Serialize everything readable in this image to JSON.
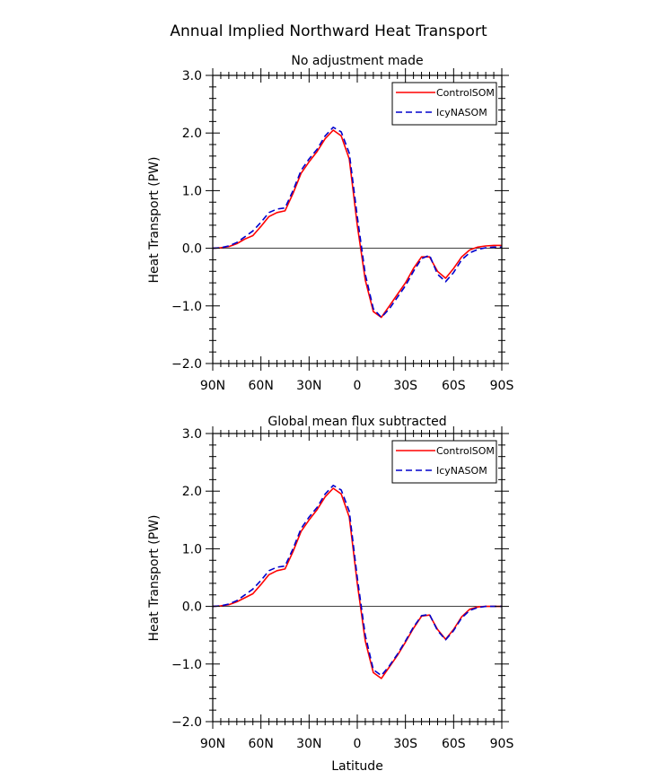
{
  "figure": {
    "title": "Annual Implied Northward Heat Transport"
  },
  "colors": {
    "control": "#ff0000",
    "icy": "#0000cc",
    "zero_line": "#000000"
  },
  "chart_data": [
    {
      "type": "line",
      "title": "No adjustment made",
      "xlabel": "",
      "ylabel": "Heat Transport (PW)",
      "xlim": [
        90,
        -90
      ],
      "ylim": [
        -2.0,
        3.0
      ],
      "x_ticks": [
        90,
        60,
        30,
        0,
        -30,
        -60,
        -90
      ],
      "x_tick_labels": [
        "90N",
        "60N",
        "30N",
        "0",
        "30S",
        "60S",
        "90S"
      ],
      "y_ticks": [
        -2.0,
        -1.0,
        0.0,
        1.0,
        2.0,
        3.0
      ],
      "y_tick_labels": [
        "−2.0",
        "−1.0",
        "0.0",
        "1.0",
        "2.0",
        "3.0"
      ],
      "legend": {
        "placement": "top-right"
      },
      "x": [
        90,
        85,
        80,
        75,
        70,
        65,
        60,
        55,
        50,
        45,
        40,
        35,
        30,
        25,
        20,
        15,
        10,
        5,
        0,
        -5,
        -10,
        -15,
        -20,
        -25,
        -30,
        -35,
        -40,
        -45,
        -50,
        -55,
        -60,
        -65,
        -70,
        -75,
        -80,
        -85,
        -90
      ],
      "series": [
        {
          "name": "ControlSOM",
          "style": "solid",
          "values": [
            0.0,
            0.01,
            0.03,
            0.08,
            0.16,
            0.22,
            0.38,
            0.55,
            0.62,
            0.65,
            0.95,
            1.3,
            1.5,
            1.68,
            1.9,
            2.05,
            1.95,
            1.55,
            0.4,
            -0.55,
            -1.1,
            -1.2,
            -1.0,
            -0.8,
            -0.6,
            -0.35,
            -0.15,
            -0.15,
            -0.4,
            -0.52,
            -0.35,
            -0.15,
            -0.03,
            0.02,
            0.04,
            0.05,
            0.05
          ]
        },
        {
          "name": "IcyNASOM",
          "style": "dashed",
          "values": [
            0.0,
            0.01,
            0.04,
            0.1,
            0.2,
            0.3,
            0.45,
            0.62,
            0.68,
            0.7,
            1.0,
            1.35,
            1.55,
            1.72,
            1.95,
            2.1,
            2.02,
            1.65,
            0.55,
            -0.45,
            -1.05,
            -1.2,
            -1.05,
            -0.85,
            -0.65,
            -0.4,
            -0.18,
            -0.12,
            -0.45,
            -0.58,
            -0.42,
            -0.2,
            -0.08,
            -0.02,
            0.01,
            0.02,
            0.02
          ]
        }
      ]
    },
    {
      "type": "line",
      "title": "Global mean flux subtracted",
      "xlabel": "Latitude",
      "ylabel": "Heat Transport (PW)",
      "xlim": [
        90,
        -90
      ],
      "ylim": [
        -2.0,
        3.0
      ],
      "x_ticks": [
        90,
        60,
        30,
        0,
        -30,
        -60,
        -90
      ],
      "x_tick_labels": [
        "90N",
        "60N",
        "30N",
        "0",
        "30S",
        "60S",
        "90S"
      ],
      "y_ticks": [
        -2.0,
        -1.0,
        0.0,
        1.0,
        2.0,
        3.0
      ],
      "y_tick_labels": [
        "−2.0",
        "−1.0",
        "0.0",
        "1.0",
        "2.0",
        "3.0"
      ],
      "legend": {
        "placement": "top-right"
      },
      "x": [
        90,
        85,
        80,
        75,
        70,
        65,
        60,
        55,
        50,
        45,
        40,
        35,
        30,
        25,
        20,
        15,
        10,
        5,
        0,
        -5,
        -10,
        -15,
        -20,
        -25,
        -30,
        -35,
        -40,
        -45,
        -50,
        -55,
        -60,
        -65,
        -70,
        -75,
        -80,
        -85,
        -90
      ],
      "series": [
        {
          "name": "ControlSOM",
          "style": "solid",
          "values": [
            0.0,
            0.01,
            0.03,
            0.08,
            0.15,
            0.22,
            0.38,
            0.55,
            0.62,
            0.65,
            0.95,
            1.3,
            1.5,
            1.68,
            1.9,
            2.05,
            1.95,
            1.55,
            0.4,
            -0.6,
            -1.15,
            -1.25,
            -1.05,
            -0.85,
            -0.62,
            -0.38,
            -0.17,
            -0.15,
            -0.4,
            -0.57,
            -0.4,
            -0.18,
            -0.05,
            -0.01,
            0.0,
            0.0,
            0.0
          ]
        },
        {
          "name": "IcyNASOM",
          "style": "dashed",
          "values": [
            0.0,
            0.01,
            0.04,
            0.1,
            0.2,
            0.3,
            0.45,
            0.62,
            0.68,
            0.7,
            1.0,
            1.35,
            1.55,
            1.72,
            1.95,
            2.1,
            2.02,
            1.65,
            0.5,
            -0.5,
            -1.1,
            -1.2,
            -1.03,
            -0.83,
            -0.6,
            -0.36,
            -0.16,
            -0.14,
            -0.42,
            -0.58,
            -0.42,
            -0.2,
            -0.07,
            -0.02,
            0.0,
            0.0,
            0.0
          ]
        }
      ]
    }
  ]
}
